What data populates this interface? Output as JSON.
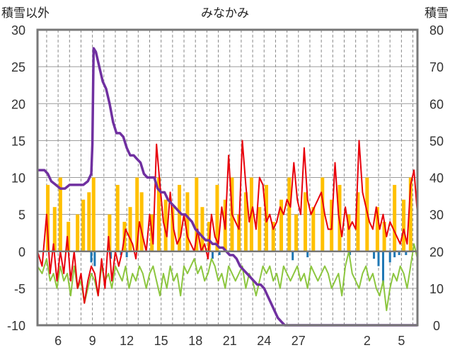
{
  "chart_data": {
    "type": "line",
    "title": "みなかみ",
    "left_axis_label": "積雪以外",
    "right_axis_label": "積雪",
    "left_ylim": [
      -10,
      30
    ],
    "right_ylim": [
      0,
      80
    ],
    "left_ticks": [
      "30",
      "25",
      "20",
      "15",
      "10",
      "5",
      "0",
      "-5",
      "-10"
    ],
    "right_ticks": [
      "80",
      "70",
      "60",
      "50",
      "40",
      "30",
      "20",
      "10",
      "0"
    ],
    "x_ticks": [
      {
        "day": 6,
        "label": "6"
      },
      {
        "day": 9,
        "label": "9"
      },
      {
        "day": 12,
        "label": "12"
      },
      {
        "day": 15,
        "label": "15"
      },
      {
        "day": 18,
        "label": "18"
      },
      {
        "day": 21,
        "label": "21"
      },
      {
        "day": 24,
        "label": "24"
      },
      {
        "day": 27,
        "label": "27"
      },
      {
        "day": 33,
        "label": "2"
      },
      {
        "day": 36,
        "label": "5"
      }
    ],
    "x_range": [
      4.2,
      37.4
    ],
    "grid": "vertical dashed at each day, horizontal solid at each left tick",
    "colors": {
      "max_temp": "#e8000b",
      "min_temp": "#8cc63f",
      "sunshine": "#ffc000",
      "precip": "#1f77b4",
      "snow_depth": "#7030a0",
      "frame": "#777777"
    },
    "series": [
      {
        "name": "max_temp",
        "axis": "left",
        "x": [
          4.2,
          4.6,
          5.0,
          5.3,
          5.6,
          5.9,
          6.2,
          6.5,
          6.8,
          7.1,
          7.4,
          7.7,
          8.0,
          8.3,
          8.6,
          8.9,
          9.2,
          9.5,
          9.8,
          10.1,
          10.4,
          10.7,
          11.0,
          11.3,
          11.6,
          11.9,
          12.2,
          12.5,
          12.8,
          13.1,
          13.4,
          13.7,
          14.0,
          14.3,
          14.6,
          14.9,
          15.2,
          15.5,
          15.8,
          16.1,
          16.4,
          16.7,
          17.0,
          17.3,
          17.6,
          17.9,
          18.2,
          18.5,
          18.8,
          19.1,
          19.4,
          19.7,
          20.0,
          20.3,
          20.6,
          20.9,
          21.2,
          21.5,
          21.8,
          22.1,
          22.4,
          22.7,
          23.0,
          23.3,
          23.6,
          23.9,
          24.2,
          24.5,
          24.8,
          25.1,
          25.4,
          25.7,
          26.0,
          26.3,
          26.6,
          26.9,
          27.2,
          27.5,
          27.8,
          28.1,
          28.4,
          28.7,
          29.0,
          29.3,
          29.6,
          29.9,
          30.2,
          30.5,
          30.8,
          31.1,
          31.4,
          31.7,
          32.0,
          32.3,
          32.6,
          32.9,
          33.2,
          33.5,
          33.8,
          34.1,
          34.4,
          34.7,
          35.0,
          35.3,
          35.6,
          35.9,
          36.2,
          36.5,
          36.8,
          37.1,
          37.4
        ],
        "y": [
          0,
          -2,
          5,
          -3,
          1,
          -4,
          0,
          -3,
          2,
          -4,
          0,
          -5,
          -3,
          -7,
          -4,
          -2,
          -3,
          -6,
          -1,
          -5,
          2,
          -4,
          0,
          -2,
          0,
          3,
          2,
          1,
          -1,
          4,
          2,
          0,
          5,
          1,
          14.5,
          9,
          4,
          2,
          8,
          3,
          1,
          2,
          5,
          2,
          1,
          0,
          3,
          0,
          1,
          -1,
          5,
          2,
          1,
          6,
          3,
          13,
          5,
          4,
          3,
          15,
          9,
          4,
          6,
          3,
          10,
          9,
          4,
          5,
          3,
          4,
          6,
          5,
          7,
          6,
          12,
          7,
          5,
          14,
          7,
          5,
          6,
          7,
          8,
          5,
          3,
          3,
          12,
          5,
          2,
          6,
          3,
          4,
          3,
          15,
          8,
          6,
          4,
          3,
          6,
          3,
          5,
          2,
          4,
          3,
          2,
          1,
          3,
          1,
          9,
          11,
          5
        ]
      },
      {
        "name": "min_temp",
        "axis": "left",
        "x": [
          4.2,
          4.6,
          5.0,
          5.3,
          5.6,
          5.9,
          6.2,
          6.5,
          6.8,
          7.1,
          7.4,
          7.7,
          8.0,
          8.3,
          8.6,
          8.9,
          9.2,
          9.5,
          9.8,
          10.1,
          10.4,
          10.7,
          11.0,
          11.3,
          11.6,
          11.9,
          12.2,
          12.5,
          12.8,
          13.1,
          13.4,
          13.7,
          14.0,
          14.3,
          14.6,
          14.9,
          15.2,
          15.5,
          15.8,
          16.1,
          16.4,
          16.7,
          17.0,
          17.3,
          17.6,
          17.9,
          18.2,
          18.5,
          18.8,
          19.1,
          19.4,
          19.7,
          20.0,
          20.3,
          20.6,
          20.9,
          21.2,
          21.5,
          21.8,
          22.1,
          22.4,
          22.7,
          23.0,
          23.3,
          23.6,
          23.9,
          24.2,
          24.5,
          24.8,
          25.1,
          25.4,
          25.7,
          26.0,
          26.3,
          26.6,
          26.9,
          27.2,
          27.5,
          27.8,
          28.1,
          28.4,
          28.7,
          29.0,
          29.3,
          29.6,
          29.9,
          30.2,
          30.5,
          30.8,
          31.1,
          31.4,
          31.7,
          32.0,
          32.3,
          32.6,
          32.9,
          33.2,
          33.5,
          33.8,
          34.1,
          34.4,
          34.7,
          35.0,
          35.3,
          35.6,
          35.9,
          36.2,
          36.5,
          36.8,
          37.1,
          37.4
        ],
        "y": [
          -2,
          -3,
          -1,
          -4,
          -3,
          -5,
          -2,
          -4,
          -3,
          -6,
          -2,
          -5,
          -4,
          -7,
          -5,
          -3,
          -4,
          -6,
          -2,
          -4,
          -3,
          -5,
          -2,
          -3,
          -4,
          -2,
          -5,
          -3,
          -4,
          -2,
          -3,
          -5,
          -3,
          -2,
          -4,
          -6,
          -3,
          -5,
          -2,
          -4,
          -3,
          -6,
          -2,
          -3,
          -2,
          -1,
          -3,
          -2,
          -4,
          -3,
          -1,
          -2,
          -4,
          -3,
          -5,
          -2,
          -3,
          -4,
          -3,
          -2,
          -5,
          -3,
          -4,
          -6,
          -4,
          -2,
          -3,
          -2,
          -4,
          -3,
          -5,
          -2,
          -3,
          -4,
          -3,
          -2,
          -4,
          -3,
          -5,
          -2,
          -3,
          -4,
          -3,
          -2,
          -3,
          -5,
          -4,
          -3,
          -6,
          -2,
          0,
          -3,
          -4,
          -5,
          -3,
          -2,
          -4,
          -3,
          -5,
          -6,
          -4,
          -8,
          -5,
          -3,
          -4,
          -2,
          -3,
          -5,
          -2,
          1,
          -1
        ]
      },
      {
        "name": "snow_depth",
        "axis": "right",
        "x": [
          4.2,
          4.8,
          5.1,
          5.4,
          5.8,
          6.2,
          6.6,
          7.0,
          7.4,
          7.8,
          8.2,
          8.6,
          8.9,
          9.0,
          9.1,
          9.3,
          9.6,
          9.9,
          10.2,
          10.5,
          10.8,
          11.1,
          11.4,
          11.7,
          12.0,
          12.3,
          12.6,
          12.9,
          13.2,
          13.5,
          13.8,
          14.1,
          14.4,
          14.7,
          15.0,
          15.3,
          15.6,
          15.9,
          16.2,
          16.5,
          16.8,
          17.1,
          17.4,
          17.7,
          18.0,
          18.3,
          18.6,
          18.9,
          19.2,
          19.5,
          19.8,
          20.1,
          20.4,
          20.7,
          21.0,
          21.3,
          21.6,
          21.9,
          22.2,
          22.5,
          22.8,
          23.1,
          23.4,
          23.7,
          24.0,
          24.3,
          24.6,
          24.9,
          25.2,
          25.5,
          25.8,
          26.2,
          27,
          28,
          29,
          30,
          31,
          32,
          33,
          34,
          35,
          36,
          37,
          37.4
        ],
        "y": [
          42,
          42,
          41,
          39,
          38,
          37,
          37,
          38,
          38,
          38,
          38,
          39,
          41,
          49,
          75,
          74,
          70,
          66,
          64,
          60,
          55,
          52,
          52,
          51,
          48,
          46,
          46,
          45,
          44,
          41,
          40,
          40,
          40,
          37,
          36,
          36,
          34,
          33,
          32,
          31,
          30,
          30,
          29,
          28,
          26,
          25,
          24,
          23,
          23,
          22,
          22,
          21,
          21,
          20,
          19,
          19,
          18,
          16,
          15,
          14,
          13,
          12,
          11,
          11,
          10,
          8,
          6,
          4,
          2,
          1,
          0,
          0,
          0,
          0,
          0,
          0,
          0,
          0,
          0,
          0,
          0,
          0,
          0,
          0
        ]
      },
      {
        "name": "sunshine",
        "axis": "left",
        "type": "bar",
        "x": [
          5.1,
          5.7,
          6.2,
          6.9,
          7.7,
          8.2,
          8.7,
          9.1,
          10.5,
          11.2,
          11.8,
          12.3,
          12.9,
          13.3,
          14.2,
          14.8,
          15.4,
          16.0,
          16.6,
          17.3,
          18.1,
          18.6,
          19.2,
          19.9,
          20.6,
          21.2,
          21.8,
          22.4,
          22.9,
          23.6,
          24.2,
          24.8,
          25.5,
          26.2,
          26.8,
          27.6,
          28.3,
          29.1,
          29.9,
          30.6,
          31.4,
          32.2,
          33.0,
          33.9,
          34.5,
          35.4,
          36.2,
          36.8
        ],
        "y": [
          9,
          6,
          10,
          4,
          5,
          7,
          8,
          10,
          5,
          9,
          4,
          6,
          10,
          8,
          5,
          10,
          7,
          6,
          9,
          8,
          10,
          6,
          4,
          9,
          7,
          10,
          5,
          8,
          10,
          6,
          9,
          4,
          7,
          10,
          5,
          8,
          6,
          10,
          7,
          9,
          5,
          8,
          10,
          6,
          4,
          9,
          7,
          10
        ]
      },
      {
        "name": "precip",
        "axis": "left",
        "type": "bar",
        "x": [
          8.9,
          9.2,
          10.6,
          11.5,
          12.0,
          19.5,
          20.1,
          26.5,
          27.8,
          31.5,
          33.6,
          34.0,
          34.4,
          35.0,
          35.4,
          35.8,
          36.4
        ],
        "y": [
          -1.5,
          -2.0,
          -1.0,
          -0.5,
          -0.8,
          -1.0,
          -0.5,
          -1.2,
          -0.8,
          -0.5,
          -1.0,
          -2.0,
          -4.5,
          -1.5,
          -0.8,
          -0.5,
          -0.5
        ]
      }
    ]
  }
}
